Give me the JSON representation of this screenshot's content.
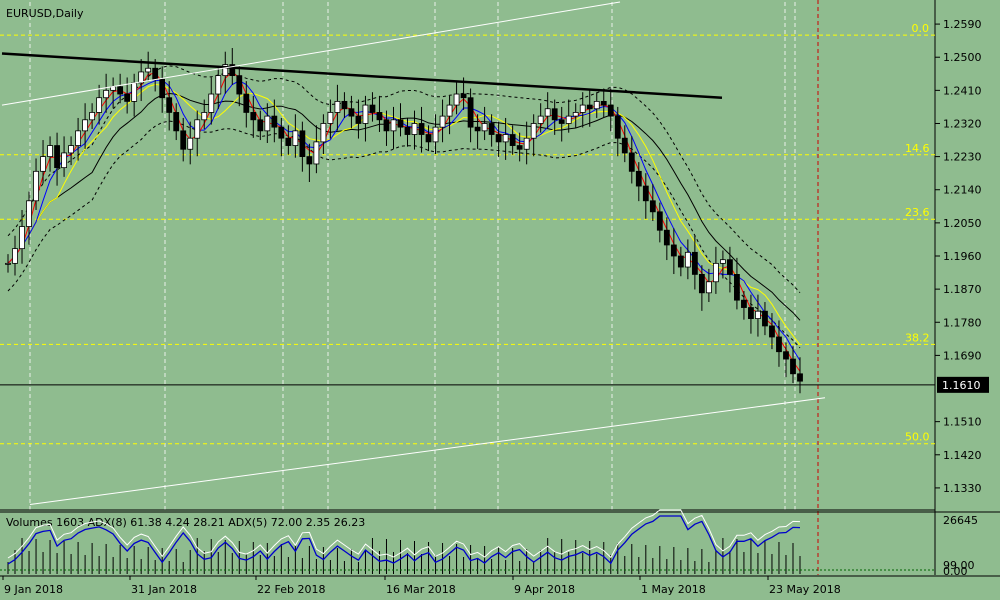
{
  "chart_data": {
    "type": "candlestick",
    "title": "EURUSD,Daily",
    "symbol": "EURUSD",
    "timeframe": "Daily",
    "price_axis": {
      "range": [
        1.127,
        1.265
      ],
      "ticks": [
        "1.2590",
        "1.2500",
        "1.2410",
        "1.2320",
        "1.2230",
        "1.2140",
        "1.2050",
        "1.1960",
        "1.1870",
        "1.1780",
        "1.1690",
        "1.1510",
        "1.1420",
        "1.1330"
      ]
    },
    "current_price": "1.1610",
    "date_labels": [
      "9 Jan 2018",
      "31 Jan 2018",
      "22 Feb 2018",
      "16 Mar 2018",
      "9 Apr 2018",
      "1 May 2018",
      "23 May 2018"
    ],
    "fibonacci_levels": [
      {
        "label": "0.0",
        "price": 1.256
      },
      {
        "label": "14.6",
        "price": 1.2235
      },
      {
        "label": "23.6",
        "price": 1.206
      },
      {
        "label": "38.2",
        "price": 1.172
      },
      {
        "label": "50.0",
        "price": 1.145
      }
    ],
    "trendline_resistance": [
      [
        1.251,
        1.239
      ]
    ],
    "close_series": [
      1.194,
      1.198,
      1.204,
      1.211,
      1.219,
      1.223,
      1.226,
      1.22,
      1.224,
      1.226,
      1.23,
      1.233,
      1.235,
      1.239,
      1.241,
      1.242,
      1.24,
      1.238,
      1.243,
      1.246,
      1.247,
      1.244,
      1.239,
      1.235,
      1.23,
      1.225,
      1.228,
      1.233,
      1.235,
      1.24,
      1.245,
      1.248,
      1.245,
      1.24,
      1.235,
      1.233,
      1.23,
      1.234,
      1.231,
      1.228,
      1.226,
      1.23,
      1.223,
      1.221,
      1.227,
      1.232,
      1.235,
      1.238,
      1.236,
      1.234,
      1.232,
      1.237,
      1.235,
      1.233,
      1.23,
      1.233,
      1.231,
      1.229,
      1.232,
      1.229,
      1.227,
      1.231,
      1.234,
      1.237,
      1.24,
      1.239,
      1.231,
      1.23,
      1.232,
      1.229,
      1.227,
      1.229,
      1.226,
      1.225,
      1.228,
      1.232,
      1.234,
      1.236,
      1.233,
      1.232,
      1.234,
      1.235,
      1.237,
      1.236,
      1.238,
      1.237,
      1.234,
      1.228,
      1.224,
      1.219,
      1.215,
      1.211,
      1.208,
      1.203,
      1.199,
      1.196,
      1.193,
      1.197,
      1.191,
      1.186,
      1.189,
      1.194,
      1.195,
      1.191,
      1.184,
      1.182,
      1.179,
      1.181,
      1.177,
      1.174,
      1.17,
      1.168,
      1.164,
      1.162
    ],
    "indicator": {
      "label": "Volumes 1603 ADX(8) 61.38 4.24 28.21 ADX(5) 72.00 2.35 26.23",
      "axis_ticks": [
        "26645",
        "99.00",
        "0.00"
      ]
    },
    "grid": true
  }
}
